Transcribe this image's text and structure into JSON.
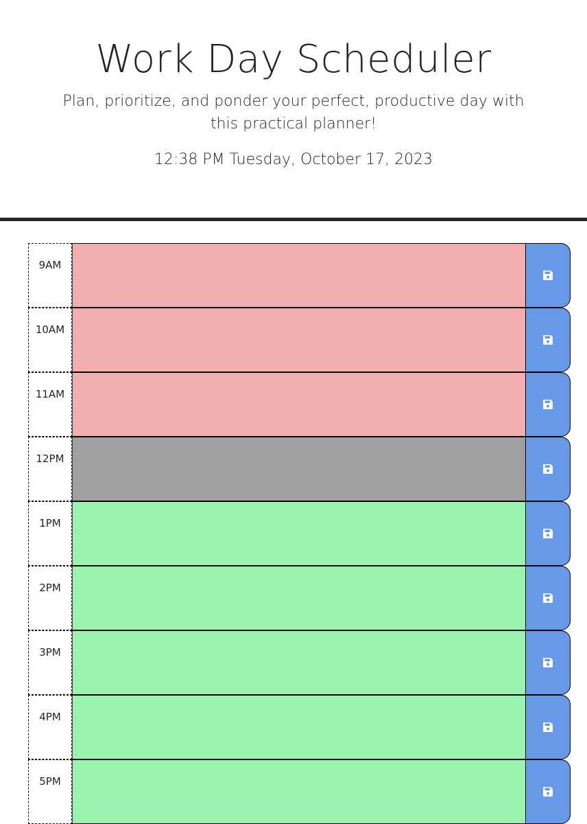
{
  "header": {
    "title": "Work Day Scheduler",
    "lead": "Plan, prioritize, and ponder your perfect, productive day with this practical planner!",
    "current_day": "12:38 PM Tuesday, October 17, 2023"
  },
  "colors": {
    "past": "#f2aeae",
    "present": "#a0a0a0",
    "future": "#9af4b0",
    "save_button": "#6699e8"
  },
  "save_icon": "floppy-disk-icon",
  "time_blocks": [
    {
      "hour": "9AM",
      "state": "past",
      "text": ""
    },
    {
      "hour": "10AM",
      "state": "past",
      "text": ""
    },
    {
      "hour": "11AM",
      "state": "past",
      "text": ""
    },
    {
      "hour": "12PM",
      "state": "present",
      "text": ""
    },
    {
      "hour": "1PM",
      "state": "future",
      "text": ""
    },
    {
      "hour": "2PM",
      "state": "future",
      "text": ""
    },
    {
      "hour": "3PM",
      "state": "future",
      "text": ""
    },
    {
      "hour": "4PM",
      "state": "future",
      "text": ""
    },
    {
      "hour": "5PM",
      "state": "future",
      "text": ""
    }
  ]
}
